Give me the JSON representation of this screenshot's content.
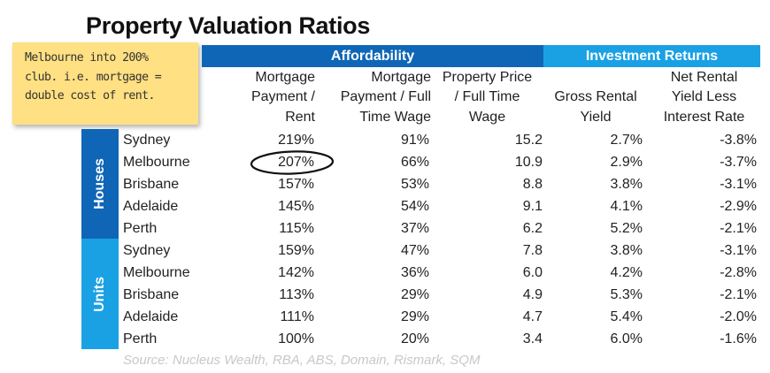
{
  "title": "Property Valuation Ratios",
  "note": {
    "lines": [
      "Melbourne into 200%",
      "club. i.e. mortgage =",
      "double cost of rent."
    ]
  },
  "groups": {
    "affordability": "Affordability",
    "investment_returns": "Investment Returns"
  },
  "columns": [
    [
      "Mortgage",
      "Payment /",
      "Rent"
    ],
    [
      "Mortgage",
      "Payment / Full",
      "Time Wage"
    ],
    [
      "Property Price",
      "/ Full Time",
      "Wage"
    ],
    [
      "Gross Rental",
      "Yield"
    ],
    [
      "Net Rental",
      "Yield Less",
      "Interest Rate"
    ]
  ],
  "side_labels": {
    "houses": "Houses",
    "units": "Units"
  },
  "rows": [
    [
      "Sydney",
      "219%",
      "91%",
      "15.2",
      "2.7%",
      "-3.8%"
    ],
    [
      "Melbourne",
      "207%",
      "66%",
      "10.9",
      "2.9%",
      "-3.7%"
    ],
    [
      "Brisbane",
      "157%",
      "53%",
      "8.8",
      "3.8%",
      "-3.1%"
    ],
    [
      "Adelaide",
      "145%",
      "54%",
      "9.1",
      "4.1%",
      "-2.9%"
    ],
    [
      "Perth",
      "115%",
      "37%",
      "6.2",
      "5.2%",
      "-2.1%"
    ],
    [
      "Sydney",
      "159%",
      "47%",
      "7.8",
      "3.8%",
      "-3.1%"
    ],
    [
      "Melbourne",
      "142%",
      "36%",
      "6.0",
      "4.2%",
      "-2.8%"
    ],
    [
      "Brisbane",
      "113%",
      "29%",
      "4.9",
      "5.3%",
      "-2.1%"
    ],
    [
      "Adelaide",
      "111%",
      "29%",
      "4.7",
      "5.4%",
      "-2.0%"
    ],
    [
      "Perth",
      "100%",
      "20%",
      "3.4",
      "6.0%",
      "-1.6%"
    ]
  ],
  "source": "Source: Nucleus Wealth, RBA, ABS, Domain, Rismark, SQM",
  "colors": {
    "affordability": "#0f66b6",
    "investment_returns": "#1aa1e4",
    "note": "#ffe082"
  },
  "chart_data": {
    "type": "table",
    "title": "Property Valuation Ratios",
    "groups": [
      {
        "name": "Affordability",
        "columns": [
          "Mortgage Payment / Rent",
          "Mortgage Payment / Full Time Wage",
          "Property Price / Full Time Wage"
        ]
      },
      {
        "name": "Investment Returns",
        "columns": [
          "Gross Rental Yield",
          "Net Rental Yield Less Interest Rate"
        ]
      }
    ],
    "row_groups": [
      {
        "name": "Houses",
        "rows": [
          {
            "city": "Sydney",
            "values": [
              "219%",
              "91%",
              "15.2",
              "2.7%",
              "-3.8%"
            ]
          },
          {
            "city": "Melbourne",
            "values": [
              "207%",
              "66%",
              "10.9",
              "2.9%",
              "-3.7%"
            ]
          },
          {
            "city": "Brisbane",
            "values": [
              "157%",
              "53%",
              "8.8",
              "3.8%",
              "-3.1%"
            ]
          },
          {
            "city": "Adelaide",
            "values": [
              "145%",
              "54%",
              "9.1",
              "4.1%",
              "-2.9%"
            ]
          },
          {
            "city": "Perth",
            "values": [
              "115%",
              "37%",
              "6.2",
              "5.2%",
              "-2.1%"
            ]
          }
        ]
      },
      {
        "name": "Units",
        "rows": [
          {
            "city": "Sydney",
            "values": [
              "159%",
              "47%",
              "7.8",
              "3.8%",
              "-3.1%"
            ]
          },
          {
            "city": "Melbourne",
            "values": [
              "142%",
              "36%",
              "6.0",
              "4.2%",
              "-2.8%"
            ]
          },
          {
            "city": "Brisbane",
            "values": [
              "113%",
              "29%",
              "4.9",
              "5.3%",
              "-2.1%"
            ]
          },
          {
            "city": "Adelaide",
            "values": [
              "111%",
              "29%",
              "4.7",
              "5.4%",
              "-2.0%"
            ]
          },
          {
            "city": "Perth",
            "values": [
              "100%",
              "20%",
              "3.4",
              "6.0%",
              "-1.6%"
            ]
          }
        ]
      }
    ],
    "highlight": {
      "group": "Houses",
      "city": "Melbourne",
      "column": "Mortgage Payment / Rent",
      "value": "207%"
    }
  }
}
